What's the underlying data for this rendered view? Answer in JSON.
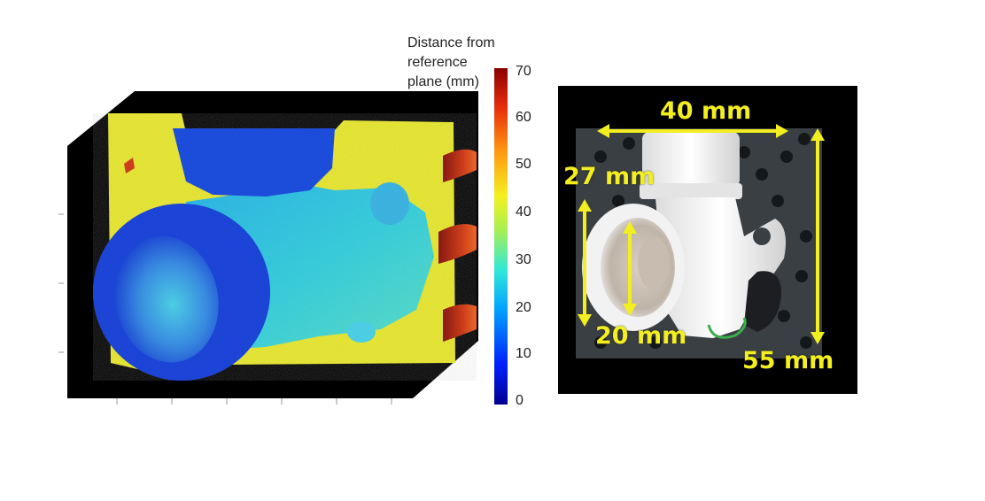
{
  "depth_map": {
    "colorbar": {
      "title_lines": [
        "Distance from",
        "reference",
        "plane (mm)"
      ],
      "ticks": [
        "0",
        "10",
        "20",
        "30",
        "40",
        "50",
        "60",
        "70"
      ],
      "min": 0,
      "max": 70
    },
    "colors": {
      "background": "#000000",
      "far": "#e9e838",
      "near": "#1a3fd6",
      "mid": "#2fc8e6",
      "hot": "#d2401c"
    }
  },
  "photo": {
    "labels": {
      "width": "40 mm",
      "top_height": "27 mm",
      "inner_diameter": "20 mm",
      "height": "55 mm"
    },
    "colors": {
      "annotation": "#f3ee1f",
      "board": "#3a3f44",
      "part": "#eeeeee"
    }
  }
}
